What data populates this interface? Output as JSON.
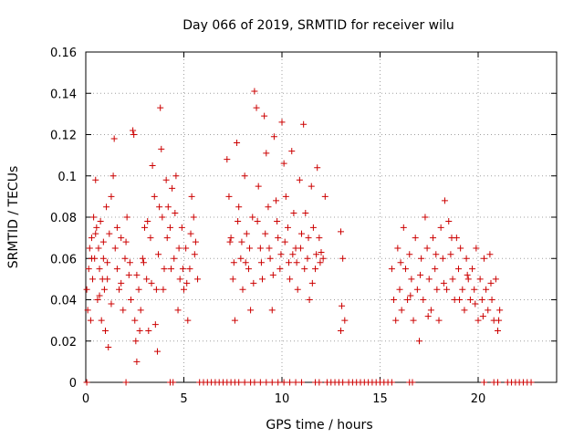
{
  "chart_data": {
    "type": "scatter",
    "title": "Day 066 of 2019, SRMTID for receiver wilu",
    "xlabel": "GPS time / hours",
    "ylabel": "SRMTID / TECUs",
    "xlim": [
      0,
      24
    ],
    "ylim": [
      0,
      0.16
    ],
    "xticks": [
      0,
      5,
      10,
      15,
      20
    ],
    "xtick_labels": [
      "0",
      "5",
      "10",
      "15",
      "20"
    ],
    "yticks": [
      0,
      0.02,
      0.04,
      0.06,
      0.08,
      0.1,
      0.12,
      0.14,
      0.16
    ],
    "ytick_labels": [
      "0",
      "0.02",
      "0.04",
      "0.06",
      "0.08",
      "0.1",
      "0.12",
      "0.14",
      "0.16"
    ],
    "grid": true,
    "marker": "plus",
    "color": "#cc0000",
    "series": [
      {
        "name": "SRMTID",
        "points": [
          [
            0.05,
            0.045
          ],
          [
            0.1,
            0.035
          ],
          [
            0.15,
            0.055
          ],
          [
            0.2,
            0.065
          ],
          [
            0.25,
            0.03
          ],
          [
            0.3,
            0.07
          ],
          [
            0.35,
            0.05
          ],
          [
            0.4,
            0.08
          ],
          [
            0.45,
            0.06
          ],
          [
            0.5,
            0.098
          ],
          [
            0.55,
            0.075
          ],
          [
            0.6,
            0.04
          ],
          [
            0.65,
            0.065
          ],
          [
            0.7,
            0.055
          ],
          [
            0.75,
            0.078
          ],
          [
            0.8,
            0.03
          ],
          [
            0.85,
            0.05
          ],
          [
            0.9,
            0.06
          ],
          [
            0.95,
            0.045
          ],
          [
            1.0,
            0.025
          ],
          [
            1.05,
            0.085
          ],
          [
            1.1,
            0.05
          ],
          [
            1.15,
            0.017
          ],
          [
            1.2,
            0.072
          ],
          [
            1.3,
            0.09
          ],
          [
            1.4,
            0.1
          ],
          [
            1.45,
            0.118
          ],
          [
            1.5,
            0.065
          ],
          [
            1.6,
            0.055
          ],
          [
            1.7,
            0.045
          ],
          [
            1.8,
            0.07
          ],
          [
            1.9,
            0.035
          ],
          [
            2.0,
            0.06
          ],
          [
            2.1,
            0.08
          ],
          [
            2.2,
            0.052
          ],
          [
            2.3,
            0.04
          ],
          [
            2.4,
            0.122
          ],
          [
            2.45,
            0.12
          ],
          [
            2.5,
            0.03
          ],
          [
            2.55,
            0.02
          ],
          [
            2.6,
            0.01
          ],
          [
            2.7,
            0.045
          ],
          [
            2.8,
            0.035
          ],
          [
            2.9,
            0.06
          ],
          [
            3.0,
            0.075
          ],
          [
            3.1,
            0.05
          ],
          [
            3.2,
            0.025
          ],
          [
            3.3,
            0.07
          ],
          [
            3.4,
            0.105
          ],
          [
            3.5,
            0.09
          ],
          [
            3.6,
            0.045
          ],
          [
            3.65,
            0.015
          ],
          [
            3.7,
            0.062
          ],
          [
            3.8,
            0.133
          ],
          [
            3.85,
            0.113
          ],
          [
            3.9,
            0.08
          ],
          [
            4.0,
            0.055
          ],
          [
            4.1,
            0.098
          ],
          [
            4.2,
            0.085
          ],
          [
            4.3,
            0.075
          ],
          [
            4.4,
            0.094
          ],
          [
            4.5,
            0.06
          ],
          [
            4.6,
            0.1
          ],
          [
            4.7,
            0.035
          ],
          [
            4.8,
            0.05
          ],
          [
            4.9,
            0.075
          ],
          [
            5.0,
            0.045
          ],
          [
            5.1,
            0.065
          ],
          [
            5.2,
            0.03
          ],
          [
            5.3,
            0.055
          ],
          [
            5.4,
            0.09
          ],
          [
            5.5,
            0.08
          ],
          [
            5.6,
            0.068
          ],
          [
            5.7,
            0.05
          ],
          [
            0.3,
            0.06
          ],
          [
            0.5,
            0.072
          ],
          [
            0.7,
            0.042
          ],
          [
            0.9,
            0.068
          ],
          [
            1.1,
            0.058
          ],
          [
            1.3,
            0.038
          ],
          [
            1.6,
            0.075
          ],
          [
            1.8,
            0.048
          ],
          [
            2.05,
            0.068
          ],
          [
            2.25,
            0.058
          ],
          [
            2.6,
            0.052
          ],
          [
            2.75,
            0.025
          ],
          [
            2.95,
            0.058
          ],
          [
            3.15,
            0.078
          ],
          [
            3.35,
            0.048
          ],
          [
            3.55,
            0.028
          ],
          [
            3.75,
            0.085
          ],
          [
            3.95,
            0.045
          ],
          [
            4.15,
            0.07
          ],
          [
            4.35,
            0.055
          ],
          [
            4.55,
            0.082
          ],
          [
            4.75,
            0.065
          ],
          [
            4.95,
            0.055
          ],
          [
            5.15,
            0.048
          ],
          [
            5.35,
            0.072
          ],
          [
            5.55,
            0.062
          ],
          [
            7.2,
            0.108
          ],
          [
            7.3,
            0.09
          ],
          [
            7.4,
            0.07
          ],
          [
            7.5,
            0.05
          ],
          [
            7.6,
            0.03
          ],
          [
            7.7,
            0.116
          ],
          [
            7.8,
            0.085
          ],
          [
            7.9,
            0.06
          ],
          [
            8.0,
            0.045
          ],
          [
            8.1,
            0.1
          ],
          [
            8.2,
            0.072
          ],
          [
            8.3,
            0.055
          ],
          [
            8.4,
            0.035
          ],
          [
            8.5,
            0.08
          ],
          [
            8.6,
            0.141
          ],
          [
            8.7,
            0.133
          ],
          [
            8.8,
            0.095
          ],
          [
            8.9,
            0.065
          ],
          [
            9.0,
            0.05
          ],
          [
            9.1,
            0.129
          ],
          [
            9.2,
            0.111
          ],
          [
            9.3,
            0.085
          ],
          [
            9.4,
            0.06
          ],
          [
            9.5,
            0.035
          ],
          [
            9.6,
            0.119
          ],
          [
            9.7,
            0.088
          ],
          [
            9.8,
            0.07
          ],
          [
            9.9,
            0.055
          ],
          [
            10.0,
            0.126
          ],
          [
            10.1,
            0.106
          ],
          [
            10.2,
            0.09
          ],
          [
            10.3,
            0.075
          ],
          [
            10.4,
            0.05
          ],
          [
            10.5,
            0.112
          ],
          [
            10.6,
            0.082
          ],
          [
            10.7,
            0.065
          ],
          [
            10.8,
            0.045
          ],
          [
            10.9,
            0.098
          ],
          [
            11.0,
            0.072
          ],
          [
            11.1,
            0.125
          ],
          [
            11.2,
            0.082
          ],
          [
            11.3,
            0.06
          ],
          [
            11.4,
            0.04
          ],
          [
            11.5,
            0.095
          ],
          [
            11.6,
            0.075
          ],
          [
            11.7,
            0.055
          ],
          [
            11.8,
            0.104
          ],
          [
            11.9,
            0.07
          ],
          [
            12.0,
            0.063
          ],
          [
            12.1,
            0.06
          ],
          [
            12.2,
            0.09
          ],
          [
            7.35,
            0.068
          ],
          [
            7.55,
            0.058
          ],
          [
            7.75,
            0.078
          ],
          [
            7.95,
            0.068
          ],
          [
            8.15,
            0.058
          ],
          [
            8.35,
            0.065
          ],
          [
            8.55,
            0.048
          ],
          [
            8.75,
            0.078
          ],
          [
            8.95,
            0.058
          ],
          [
            9.15,
            0.072
          ],
          [
            9.35,
            0.065
          ],
          [
            9.55,
            0.052
          ],
          [
            9.75,
            0.078
          ],
          [
            9.95,
            0.062
          ],
          [
            10.15,
            0.068
          ],
          [
            10.35,
            0.058
          ],
          [
            10.55,
            0.062
          ],
          [
            10.75,
            0.058
          ],
          [
            10.95,
            0.065
          ],
          [
            11.15,
            0.055
          ],
          [
            11.35,
            0.07
          ],
          [
            11.55,
            0.048
          ],
          [
            11.75,
            0.062
          ],
          [
            11.95,
            0.058
          ],
          [
            13.0,
            0.073
          ],
          [
            13.1,
            0.06
          ],
          [
            13.05,
            0.037
          ],
          [
            13.0,
            0.025
          ],
          [
            13.2,
            0.03
          ],
          [
            15.6,
            0.055
          ],
          [
            15.7,
            0.04
          ],
          [
            15.8,
            0.03
          ],
          [
            15.9,
            0.065
          ],
          [
            16.0,
            0.045
          ],
          [
            16.1,
            0.035
          ],
          [
            16.2,
            0.075
          ],
          [
            16.3,
            0.055
          ],
          [
            16.4,
            0.04
          ],
          [
            16.5,
            0.062
          ],
          [
            16.6,
            0.05
          ],
          [
            16.7,
            0.03
          ],
          [
            16.8,
            0.07
          ],
          [
            16.9,
            0.045
          ],
          [
            17.0,
            0.02
          ],
          [
            17.1,
            0.06
          ],
          [
            17.2,
            0.04
          ],
          [
            17.3,
            0.08
          ],
          [
            17.4,
            0.065
          ],
          [
            17.5,
            0.05
          ],
          [
            17.6,
            0.035
          ],
          [
            17.7,
            0.07
          ],
          [
            17.8,
            0.055
          ],
          [
            17.9,
            0.045
          ],
          [
            18.0,
            0.03
          ],
          [
            18.1,
            0.075
          ],
          [
            18.2,
            0.06
          ],
          [
            18.3,
            0.088
          ],
          [
            18.4,
            0.045
          ],
          [
            18.5,
            0.078
          ],
          [
            18.6,
            0.062
          ],
          [
            18.7,
            0.05
          ],
          [
            18.8,
            0.04
          ],
          [
            18.9,
            0.07
          ],
          [
            19.0,
            0.055
          ],
          [
            19.1,
            0.065
          ],
          [
            19.2,
            0.045
          ],
          [
            19.3,
            0.035
          ],
          [
            19.4,
            0.06
          ],
          [
            19.5,
            0.05
          ],
          [
            19.6,
            0.04
          ],
          [
            19.7,
            0.055
          ],
          [
            19.8,
            0.045
          ],
          [
            19.9,
            0.065
          ],
          [
            20.0,
            0.03
          ],
          [
            20.1,
            0.05
          ],
          [
            20.2,
            0.04
          ],
          [
            20.3,
            0.06
          ],
          [
            20.4,
            0.045
          ],
          [
            20.5,
            0.035
          ],
          [
            20.6,
            0.062
          ],
          [
            20.7,
            0.04
          ],
          [
            20.8,
            0.03
          ],
          [
            20.9,
            0.05
          ],
          [
            21.0,
            0.025
          ],
          [
            21.1,
            0.035
          ],
          [
            16.05,
            0.058
          ],
          [
            16.55,
            0.042
          ],
          [
            17.05,
            0.052
          ],
          [
            17.45,
            0.032
          ],
          [
            17.85,
            0.062
          ],
          [
            18.25,
            0.048
          ],
          [
            18.65,
            0.07
          ],
          [
            19.05,
            0.04
          ],
          [
            19.45,
            0.052
          ],
          [
            19.85,
            0.038
          ],
          [
            20.25,
            0.032
          ],
          [
            20.65,
            0.048
          ],
          [
            21.05,
            0.03
          ],
          [
            0.05,
            0
          ],
          [
            2.05,
            0
          ],
          [
            4.3,
            0
          ],
          [
            4.45,
            0
          ],
          [
            5.8,
            0
          ],
          [
            6.0,
            0
          ],
          [
            6.2,
            0
          ],
          [
            6.4,
            0
          ],
          [
            6.6,
            0
          ],
          [
            6.8,
            0
          ],
          [
            7.0,
            0
          ],
          [
            7.2,
            0
          ],
          [
            7.4,
            0
          ],
          [
            7.6,
            0
          ],
          [
            7.8,
            0
          ],
          [
            8.1,
            0
          ],
          [
            8.4,
            0
          ],
          [
            8.6,
            0
          ],
          [
            8.9,
            0
          ],
          [
            9.2,
            0
          ],
          [
            9.5,
            0
          ],
          [
            9.8,
            0
          ],
          [
            10.1,
            0
          ],
          [
            10.4,
            0
          ],
          [
            10.7,
            0
          ],
          [
            11.0,
            0
          ],
          [
            11.7,
            0
          ],
          [
            11.9,
            0
          ],
          [
            12.3,
            0
          ],
          [
            12.5,
            0
          ],
          [
            12.7,
            0
          ],
          [
            12.9,
            0
          ],
          [
            13.1,
            0
          ],
          [
            13.4,
            0
          ],
          [
            13.6,
            0
          ],
          [
            13.8,
            0
          ],
          [
            14.0,
            0
          ],
          [
            14.2,
            0
          ],
          [
            14.4,
            0
          ],
          [
            14.6,
            0
          ],
          [
            14.8,
            0
          ],
          [
            15.0,
            0
          ],
          [
            15.2,
            0
          ],
          [
            15.4,
            0
          ],
          [
            15.6,
            0
          ],
          [
            16.5,
            0
          ],
          [
            16.65,
            0
          ],
          [
            20.3,
            0
          ],
          [
            20.8,
            0
          ],
          [
            21.0,
            0
          ],
          [
            21.5,
            0
          ],
          [
            21.7,
            0
          ],
          [
            21.9,
            0
          ],
          [
            22.1,
            0
          ],
          [
            22.3,
            0
          ],
          [
            22.5,
            0
          ],
          [
            22.7,
            0
          ]
        ]
      }
    ]
  }
}
